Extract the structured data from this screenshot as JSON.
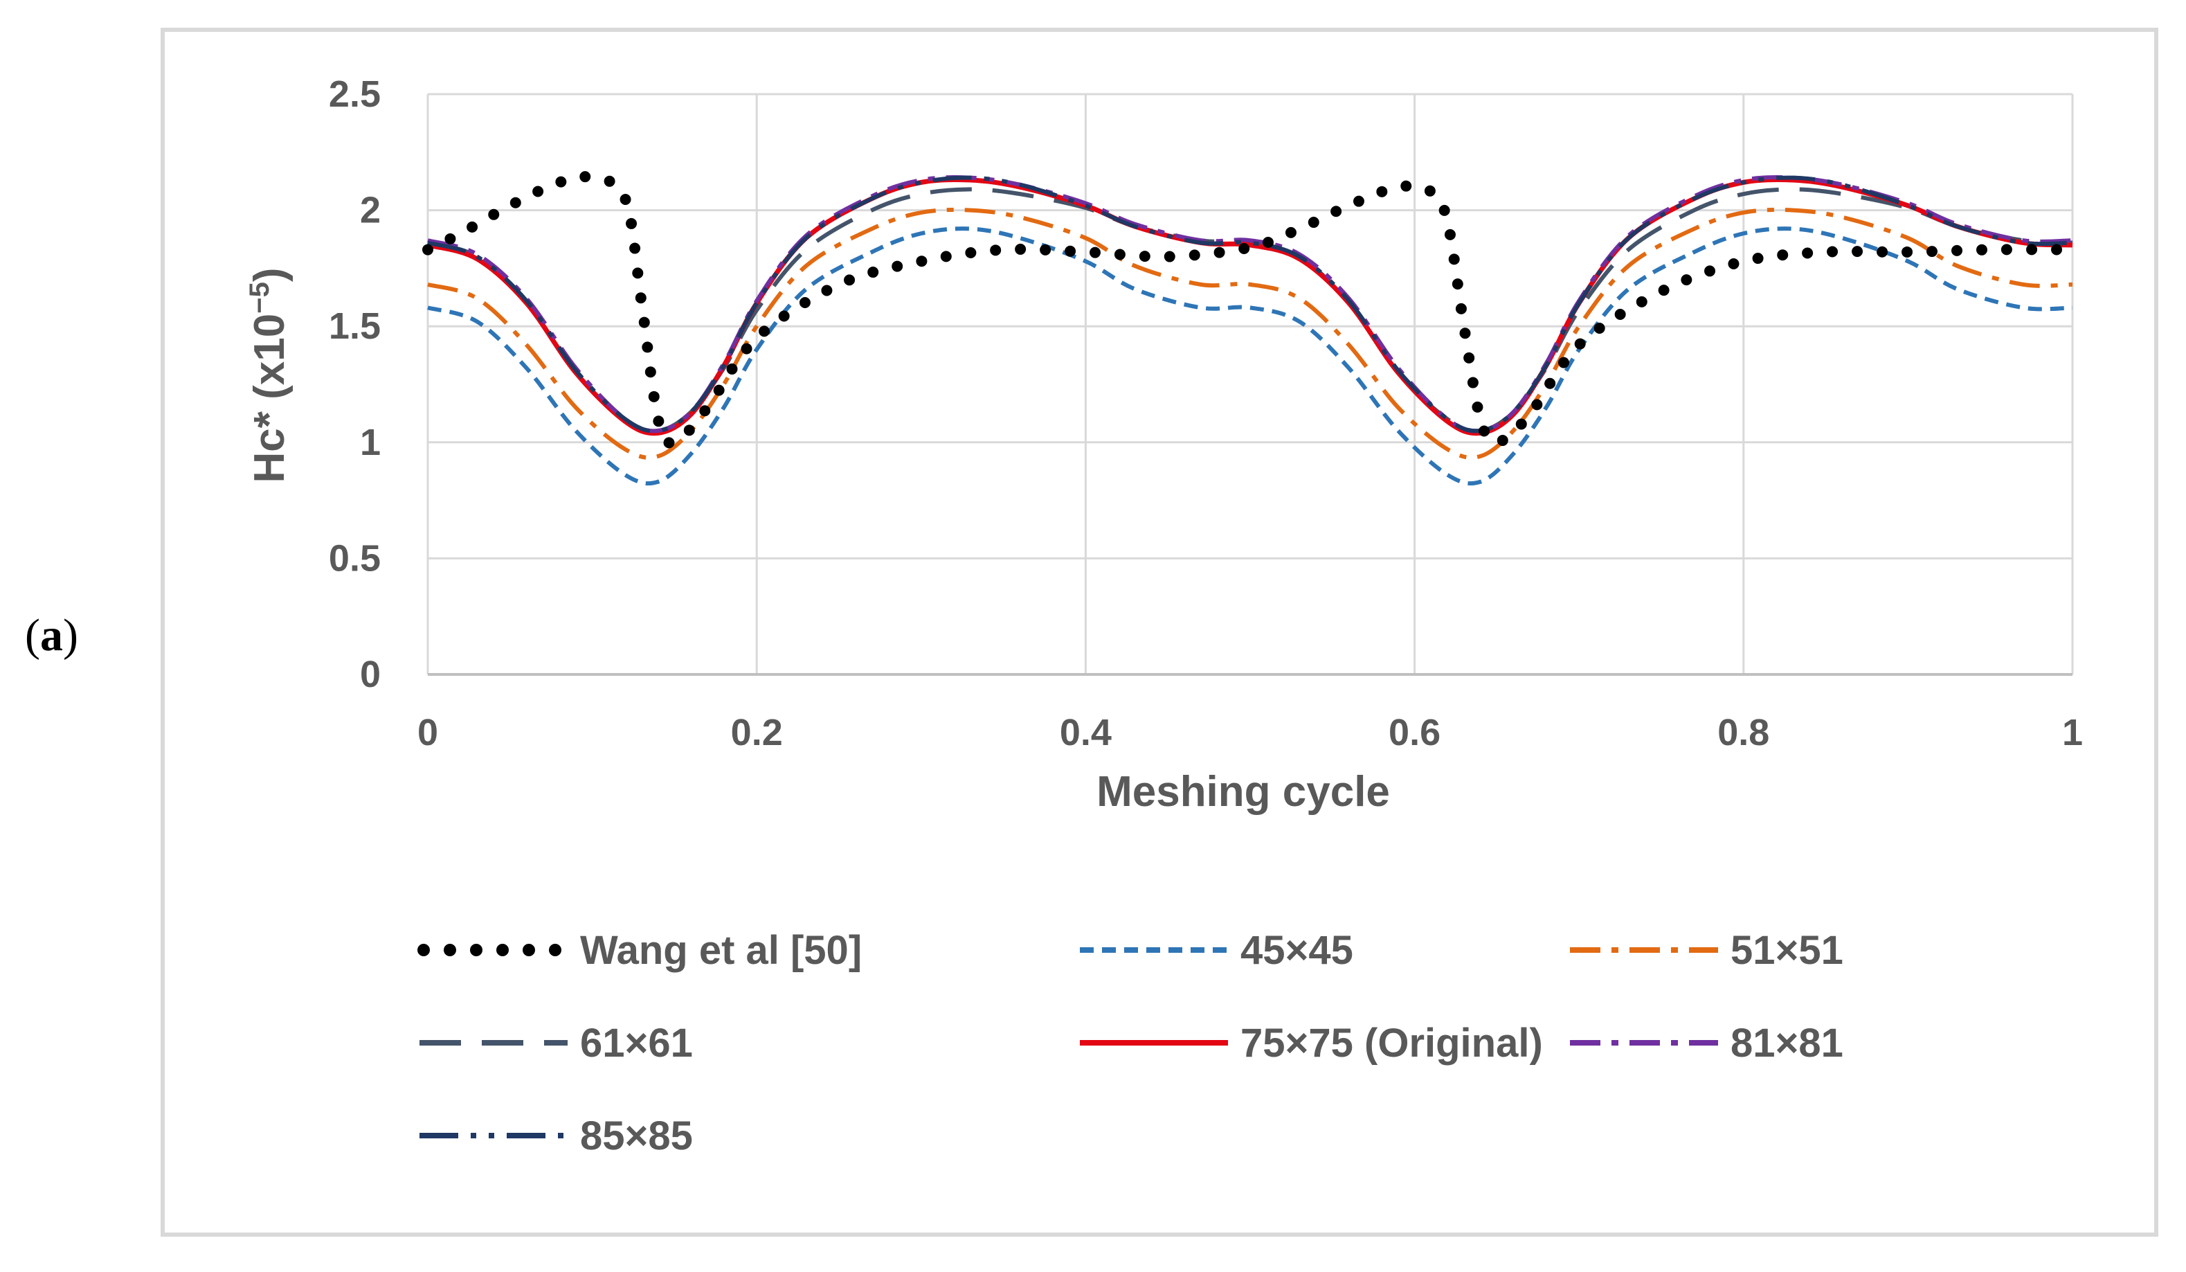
{
  "panel_label": {
    "open": "(",
    "letter": "a",
    "close": ")"
  },
  "chart_data": {
    "type": "line",
    "xlabel": "Meshing cycle",
    "ylabel_main": "Hc* (x10",
    "ylabel_exp": "−5",
    "ylabel_close": ")",
    "xlim": [
      0,
      1
    ],
    "ylim": [
      0,
      2.5
    ],
    "xticks": [
      0,
      0.2,
      0.4,
      0.6,
      0.8,
      1
    ],
    "xtick_labels": [
      "0",
      "0.2",
      "0.4",
      "0.6",
      "0.8",
      "1"
    ],
    "yticks": [
      0,
      0.5,
      1,
      1.5,
      2,
      2.5
    ],
    "ytick_labels": [
      "0",
      "0.5",
      "1",
      "1.5",
      "2",
      "2.5"
    ],
    "grid": true,
    "legend_position": "bottom",
    "series": [
      {
        "name": "Wang et al [50]",
        "color": "#000000",
        "style": "dot",
        "x": [
          0,
          0.02,
          0.05,
          0.08,
          0.1,
          0.12,
          0.13,
          0.14,
          0.15,
          0.17,
          0.2,
          0.25,
          0.3,
          0.35,
          0.4,
          0.45,
          0.5,
          0.53,
          0.56,
          0.59,
          0.61,
          0.62,
          0.63,
          0.64,
          0.65,
          0.67,
          0.7,
          0.75,
          0.8,
          0.85,
          0.9,
          0.95,
          1
        ],
        "y": [
          1.83,
          1.9,
          2.02,
          2.12,
          2.14,
          2.05,
          1.6,
          1.1,
          1.0,
          1.15,
          1.45,
          1.68,
          1.78,
          1.83,
          1.82,
          1.8,
          1.84,
          1.92,
          2.02,
          2.1,
          2.08,
          1.95,
          1.5,
          1.1,
          1.0,
          1.12,
          1.42,
          1.65,
          1.78,
          1.82,
          1.82,
          1.83,
          1.83
        ]
      },
      {
        "name": "45×45",
        "color": "#2e75b6",
        "style": "dash",
        "x": [
          0,
          0.03,
          0.06,
          0.09,
          0.12,
          0.14,
          0.16,
          0.18,
          0.2,
          0.23,
          0.27,
          0.3,
          0.33,
          0.36,
          0.4,
          0.43,
          0.47,
          0.5,
          0.53,
          0.56,
          0.59,
          0.62,
          0.64,
          0.66,
          0.68,
          0.7,
          0.73,
          0.77,
          0.8,
          0.83,
          0.86,
          0.9,
          0.93,
          0.97,
          1
        ],
        "y": [
          1.58,
          1.52,
          1.32,
          1.05,
          0.86,
          0.83,
          0.95,
          1.15,
          1.4,
          1.66,
          1.82,
          1.9,
          1.92,
          1.88,
          1.78,
          1.66,
          1.58,
          1.58,
          1.52,
          1.32,
          1.05,
          0.86,
          0.83,
          0.95,
          1.15,
          1.4,
          1.66,
          1.82,
          1.9,
          1.92,
          1.88,
          1.78,
          1.66,
          1.58,
          1.58
        ]
      },
      {
        "name": "51×51",
        "color": "#e26a12",
        "style": "dashdot",
        "x": [
          0,
          0.03,
          0.06,
          0.09,
          0.12,
          0.14,
          0.16,
          0.18,
          0.2,
          0.23,
          0.27,
          0.3,
          0.33,
          0.36,
          0.4,
          0.43,
          0.47,
          0.5,
          0.53,
          0.56,
          0.59,
          0.62,
          0.64,
          0.66,
          0.68,
          0.7,
          0.73,
          0.77,
          0.8,
          0.83,
          0.86,
          0.9,
          0.93,
          0.97,
          1
        ],
        "y": [
          1.68,
          1.62,
          1.42,
          1.15,
          0.97,
          0.94,
          1.05,
          1.25,
          1.5,
          1.76,
          1.92,
          1.99,
          2.0,
          1.97,
          1.88,
          1.76,
          1.68,
          1.68,
          1.62,
          1.42,
          1.15,
          0.97,
          0.94,
          1.05,
          1.25,
          1.5,
          1.76,
          1.92,
          1.99,
          2.0,
          1.97,
          1.88,
          1.76,
          1.68,
          1.68
        ]
      },
      {
        "name": "61×61",
        "color": "#44546a",
        "style": "longdash",
        "x": [
          0,
          0.03,
          0.06,
          0.09,
          0.12,
          0.14,
          0.16,
          0.18,
          0.2,
          0.23,
          0.27,
          0.3,
          0.33,
          0.36,
          0.4,
          0.43,
          0.47,
          0.5,
          0.53,
          0.56,
          0.59,
          0.62,
          0.64,
          0.66,
          0.68,
          0.7,
          0.73,
          0.77,
          0.8,
          0.83,
          0.86,
          0.9,
          0.93,
          0.97,
          1
        ],
        "y": [
          1.86,
          1.8,
          1.6,
          1.3,
          1.1,
          1.05,
          1.13,
          1.32,
          1.57,
          1.83,
          2.0,
          2.07,
          2.09,
          2.07,
          2.01,
          1.93,
          1.87,
          1.86,
          1.8,
          1.6,
          1.3,
          1.1,
          1.05,
          1.13,
          1.32,
          1.57,
          1.83,
          2.0,
          2.07,
          2.09,
          2.07,
          2.01,
          1.93,
          1.87,
          1.86
        ]
      },
      {
        "name": "75×75 (Original)",
        "color": "#e30613",
        "style": "solid",
        "x": [
          0,
          0.03,
          0.06,
          0.09,
          0.12,
          0.14,
          0.16,
          0.18,
          0.2,
          0.23,
          0.27,
          0.3,
          0.33,
          0.36,
          0.4,
          0.43,
          0.47,
          0.5,
          0.53,
          0.56,
          0.59,
          0.62,
          0.64,
          0.66,
          0.68,
          0.7,
          0.73,
          0.77,
          0.8,
          0.83,
          0.86,
          0.9,
          0.93,
          0.97,
          1
        ],
        "y": [
          1.85,
          1.79,
          1.6,
          1.3,
          1.09,
          1.04,
          1.12,
          1.33,
          1.6,
          1.88,
          2.05,
          2.12,
          2.13,
          2.1,
          2.02,
          1.93,
          1.86,
          1.85,
          1.79,
          1.6,
          1.3,
          1.09,
          1.04,
          1.12,
          1.33,
          1.6,
          1.88,
          2.05,
          2.12,
          2.13,
          2.1,
          2.02,
          1.93,
          1.86,
          1.85
        ]
      },
      {
        "name": "81×81",
        "color": "#7030a0",
        "style": "dashdot",
        "x": [
          0,
          0.03,
          0.06,
          0.09,
          0.12,
          0.14,
          0.16,
          0.18,
          0.2,
          0.23,
          0.27,
          0.3,
          0.33,
          0.36,
          0.4,
          0.43,
          0.47,
          0.5,
          0.53,
          0.56,
          0.59,
          0.62,
          0.64,
          0.66,
          0.68,
          0.7,
          0.73,
          0.77,
          0.8,
          0.83,
          0.86,
          0.9,
          0.93,
          0.97,
          1
        ],
        "y": [
          1.87,
          1.81,
          1.62,
          1.32,
          1.1,
          1.05,
          1.13,
          1.34,
          1.61,
          1.89,
          2.06,
          2.13,
          2.14,
          2.11,
          2.03,
          1.94,
          1.87,
          1.87,
          1.81,
          1.62,
          1.32,
          1.1,
          1.05,
          1.13,
          1.34,
          1.61,
          1.89,
          2.06,
          2.13,
          2.14,
          2.11,
          2.03,
          1.94,
          1.87,
          1.87
        ]
      },
      {
        "name": "85×85",
        "color": "#1f3864",
        "style": "dashdotdot",
        "x": [
          0,
          0.03,
          0.06,
          0.09,
          0.12,
          0.14,
          0.16,
          0.18,
          0.2,
          0.23,
          0.27,
          0.3,
          0.33,
          0.36,
          0.4,
          0.43,
          0.47,
          0.5,
          0.53,
          0.56,
          0.59,
          0.62,
          0.64,
          0.66,
          0.68,
          0.7,
          0.73,
          0.77,
          0.8,
          0.83,
          0.86,
          0.9,
          0.93,
          0.97,
          1
        ],
        "y": [
          1.86,
          1.8,
          1.61,
          1.31,
          1.1,
          1.05,
          1.13,
          1.33,
          1.6,
          1.88,
          2.05,
          2.12,
          2.14,
          2.11,
          2.02,
          1.93,
          1.86,
          1.86,
          1.8,
          1.61,
          1.31,
          1.1,
          1.05,
          1.13,
          1.33,
          1.6,
          1.88,
          2.05,
          2.12,
          2.14,
          2.11,
          2.02,
          1.93,
          1.86,
          1.86
        ]
      }
    ]
  }
}
